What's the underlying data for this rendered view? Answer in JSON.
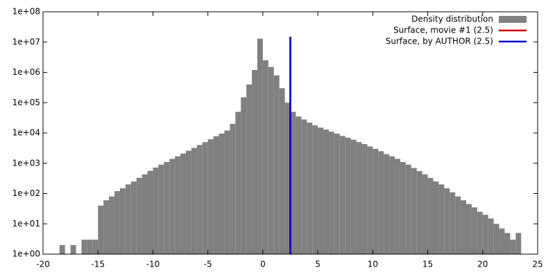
{
  "chart_data": {
    "type": "histogram",
    "log_y": true,
    "grid": false,
    "legend": "top-right",
    "name": "Density distribution",
    "color": "#808080",
    "bins": [
      -18.5,
      -18,
      -17.5,
      -17,
      -16.5,
      -16,
      -15.5,
      -15,
      -14.5,
      -14,
      -13.5,
      -13,
      -12.5,
      -12,
      -11.5,
      -11,
      -10.5,
      -10,
      -9.5,
      -9,
      -8.5,
      -8,
      -7.5,
      -7,
      -6.5,
      -6,
      -5.5,
      -5,
      -4.5,
      -4,
      -3.5,
      -3,
      -2.5,
      -2,
      -1.5,
      -1,
      -0.5,
      0,
      0.5,
      1,
      1.5,
      2,
      2.5,
      3,
      3.5,
      4,
      4.5,
      5,
      5.5,
      6,
      6.5,
      7,
      7.5,
      8,
      8.5,
      9,
      9.5,
      10,
      10.5,
      11,
      11.5,
      12,
      12.5,
      13,
      13.5,
      14,
      14.5,
      15,
      15.5,
      16,
      16.5,
      17,
      17.5,
      18,
      18.5,
      19,
      19.5,
      20,
      20.5,
      21,
      21.5,
      22,
      22.5,
      23,
      23.5
    ],
    "values": [
      2,
      null,
      2,
      null,
      3,
      3,
      3,
      40,
      60,
      80,
      120,
      150,
      200,
      250,
      330,
      430,
      560,
      720,
      900,
      1100,
      1400,
      1700,
      2100,
      2600,
      3200,
      4000,
      5000,
      6200,
      7800,
      9500,
      12000,
      20000,
      50000,
      150000,
      400000,
      1200000,
      13000000,
      2500000,
      1500000,
      800000,
      300000,
      100000,
      50000,
      35000,
      28000,
      22000,
      18000,
      15000,
      13000,
      11000,
      9500,
      8000,
      7000,
      6000,
      5000,
      4300,
      3600,
      3000,
      2500,
      2000,
      1700,
      1400,
      1100,
      900,
      700,
      550,
      430,
      330,
      250,
      200,
      150,
      110,
      80,
      60,
      45,
      35,
      25,
      20,
      15,
      10,
      7,
      5,
      3,
      5
    ],
    "lines": [
      {
        "name": "Surface, movie #1 (2.5)",
        "color": "#cc0000",
        "x": 2.5,
        "top": 15000000
      },
      {
        "name": "Surface, by AUTHOR (2.5)",
        "color": "#0000cc",
        "x": 2.5,
        "top": 15000000
      }
    ],
    "xlim": [
      -20,
      25
    ],
    "xticks": [
      -20,
      -15,
      -10,
      -5,
      0,
      5,
      10,
      15,
      20,
      25
    ],
    "ylim": [
      1,
      100000000
    ],
    "yticks": [
      {
        "value": 1,
        "label": "1e+00"
      },
      {
        "value": 10,
        "label": "1e+01"
      },
      {
        "value": 100,
        "label": "1e+02"
      },
      {
        "value": 1000,
        "label": "1e+03"
      },
      {
        "value": 10000,
        "label": "1e+04"
      },
      {
        "value": 100000,
        "label": "1e+05"
      },
      {
        "value": 1000000,
        "label": "1e+06"
      },
      {
        "value": 10000000,
        "label": "1e+07"
      },
      {
        "value": 100000000,
        "label": "1e+08"
      }
    ]
  }
}
